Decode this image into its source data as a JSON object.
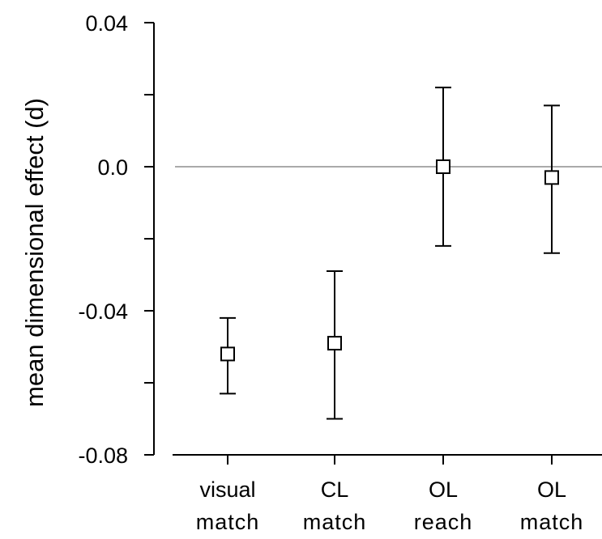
{
  "chart_data": {
    "type": "scatter",
    "title": "",
    "xlabel": "",
    "ylabel": "mean  dimensional  effect  (d)",
    "ylim": [
      -0.08,
      0.04
    ],
    "yticks_labeled": [
      {
        "value": 0.04,
        "label": "0.04"
      },
      {
        "value": 0.0,
        "label": "0.0"
      },
      {
        "value": -0.04,
        "label": "-0.04"
      },
      {
        "value": -0.08,
        "label": "-0.08"
      }
    ],
    "yticks_minor": [
      0.02,
      -0.02,
      -0.06
    ],
    "reference_line": {
      "y": 0.0,
      "color": "#aaaaaa"
    },
    "categories": [
      {
        "line1": "visual",
        "line2": "match"
      },
      {
        "line1": "CL",
        "line2": "match"
      },
      {
        "line1": "OL",
        "line2": "reach"
      },
      {
        "line1": "OL",
        "line2": "match"
      }
    ],
    "series": [
      {
        "values": [
          -0.052,
          -0.049,
          0.0,
          -0.003
        ],
        "error_low": [
          -0.063,
          -0.07,
          -0.022,
          -0.024
        ],
        "error_high": [
          -0.042,
          -0.029,
          0.022,
          0.017
        ],
        "marker": "open-square",
        "color": "#000000"
      }
    ],
    "grid": false,
    "legend": "none"
  }
}
